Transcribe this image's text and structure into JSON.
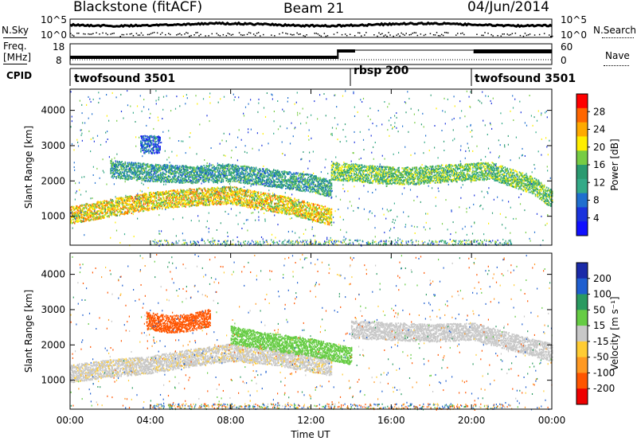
{
  "header": {
    "title": "Blackstone (fitACF)",
    "beam": "Beam 21",
    "date": "04/Jun/2014"
  },
  "noise_panel": {
    "left_label": "N.Sky",
    "left_ticks": [
      "10^5",
      "10^0"
    ],
    "right_ticks": [
      "10^5",
      "10^0"
    ],
    "right_label": "N.Search"
  },
  "freq_panel": {
    "left_label_1": "Freq.",
    "left_label_2": "[MHz]",
    "left_ticks": [
      "18",
      "8"
    ],
    "right_ticks": [
      "60",
      "0"
    ],
    "right_label": "Nave"
  },
  "cpid_panel": {
    "label": "CPID",
    "segments": [
      {
        "name": "twofsound 3501",
        "start": 0.0,
        "end": 14.0
      },
      {
        "name": "rbsp 200",
        "start": 14.0,
        "end": 20.0
      },
      {
        "name": "twofsound 3501",
        "start": 20.0,
        "end": 24.0
      }
    ]
  },
  "chart_data": [
    {
      "type": "heatmap",
      "name": "power",
      "xlabel": "Time UT",
      "ylabel": "Slant Range [km]",
      "xlim": [
        0,
        24
      ],
      "ylim": [
        180,
        4600
      ],
      "yticks": [
        "1000",
        "2000",
        "3000",
        "4000"
      ],
      "colorbar": {
        "label": "Power [dB]",
        "ticks": [
          "28",
          "24",
          "20",
          "16",
          "12",
          "8",
          "4"
        ],
        "colors": [
          "#ff0000",
          "#ff6600",
          "#ffaa00",
          "#ffee00",
          "#77cc44",
          "#2a9a70",
          "#33aa88",
          "#1f6fcf",
          "#1a33dd",
          "#1010ff"
        ]
      },
      "bands": [
        {
          "t": [
            0,
            2,
            4,
            6,
            8,
            9,
            10,
            11,
            12,
            13
          ],
          "r": [
            1050,
            1250,
            1450,
            1550,
            1620,
            1500,
            1400,
            1300,
            1150,
            1000
          ],
          "level": 22
        },
        {
          "t": [
            2,
            4,
            6,
            8,
            10,
            12,
            13
          ],
          "r": [
            2350,
            2250,
            2200,
            2250,
            2100,
            1950,
            1800
          ],
          "level": 12
        },
        {
          "t": [
            13,
            15,
            17,
            19,
            21,
            23,
            24
          ],
          "r": [
            2300,
            2200,
            2150,
            2250,
            2300,
            1900,
            1500
          ],
          "level": 16
        },
        {
          "t": [
            3.5,
            4.5
          ],
          "r": [
            3050,
            3050
          ],
          "level": 6
        }
      ]
    },
    {
      "type": "heatmap",
      "name": "velocity",
      "xlabel": "Time UT",
      "ylabel": "Slant Range [km]",
      "xlim": [
        0,
        24
      ],
      "ylim": [
        180,
        4600
      ],
      "yticks": [
        "1000",
        "2000",
        "3000",
        "4000"
      ],
      "colorbar": {
        "label": "Velocity [m s⁻¹]",
        "ticks": [
          "200",
          "100",
          "50",
          "15",
          "-15",
          "-50",
          "-100",
          "-200"
        ],
        "colors": [
          "#1a2aa8",
          "#1f5fd0",
          "#2a9a60",
          "#66cc44",
          "#c8c8c8",
          "#ffcc33",
          "#ff9922",
          "#ff5500",
          "#ee0000"
        ]
      },
      "bands": [
        {
          "t": [
            0,
            2,
            4,
            6,
            8,
            10,
            12,
            13
          ],
          "r": [
            1200,
            1350,
            1450,
            1650,
            1800,
            1700,
            1500,
            1400
          ],
          "level": -10
        },
        {
          "t": [
            8,
            10,
            12,
            14
          ],
          "r": [
            2300,
            2100,
            1950,
            1700
          ],
          "level": 30
        },
        {
          "t": [
            14,
            16,
            18,
            20,
            22,
            24
          ],
          "r": [
            2450,
            2400,
            2350,
            2400,
            2100,
            1800
          ],
          "level": 0
        },
        {
          "t": [
            3.8,
            5,
            6,
            7
          ],
          "r": [
            2700,
            2600,
            2650,
            2800
          ],
          "level": -120
        }
      ]
    }
  ],
  "xaxis": {
    "ticks": [
      "00:00",
      "04:00",
      "08:00",
      "12:00",
      "16:00",
      "20:00",
      "00:00"
    ],
    "label": "Time UT"
  }
}
